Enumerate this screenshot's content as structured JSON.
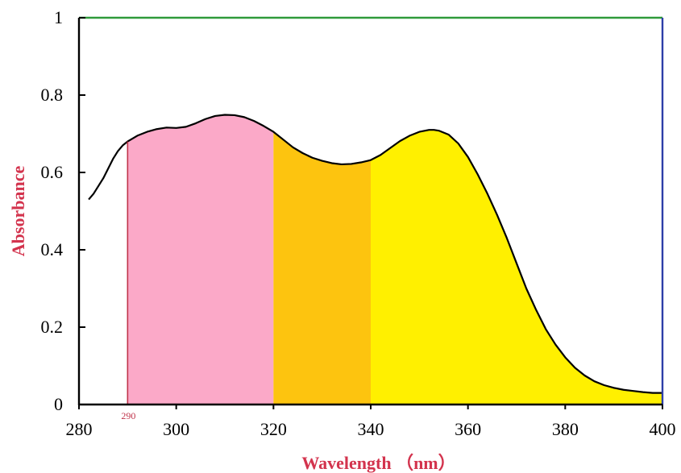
{
  "chart_data": {
    "type": "area",
    "title": "",
    "xlabel": "Wavelength （nm）",
    "ylabel": "Absorbance",
    "xlim": [
      280,
      400
    ],
    "ylim": [
      0,
      1
    ],
    "x_ticks": [
      280,
      300,
      320,
      340,
      360,
      380,
      400
    ],
    "y_ticks": [
      0,
      0.2,
      0.4,
      0.6,
      0.8,
      1
    ],
    "y_tick_labels": [
      "0",
      "0.2",
      "0.4",
      "0.6",
      "0.8",
      "1"
    ],
    "grid": false,
    "legend": "none",
    "series": [
      {
        "x": [
          282,
          283,
          284,
          285,
          286,
          287,
          288,
          289,
          290,
          292,
          294,
          296,
          298,
          300,
          302,
          304,
          306,
          308,
          310,
          312,
          314,
          316,
          318,
          320,
          322,
          324,
          326,
          328,
          330,
          332,
          334,
          336,
          338,
          340,
          342,
          344,
          346,
          348,
          350,
          352,
          353,
          354,
          356,
          358,
          360,
          362,
          364,
          366,
          368,
          370,
          372,
          374,
          376,
          378,
          380,
          382,
          384,
          386,
          388,
          390,
          392,
          394,
          396,
          398,
          400
        ],
        "y": [
          0.53,
          0.545,
          0.565,
          0.585,
          0.61,
          0.635,
          0.655,
          0.67,
          0.68,
          0.695,
          0.705,
          0.712,
          0.716,
          0.715,
          0.718,
          0.727,
          0.738,
          0.746,
          0.749,
          0.748,
          0.743,
          0.733,
          0.72,
          0.705,
          0.685,
          0.665,
          0.65,
          0.638,
          0.63,
          0.624,
          0.621,
          0.622,
          0.626,
          0.632,
          0.645,
          0.663,
          0.681,
          0.695,
          0.705,
          0.71,
          0.71,
          0.708,
          0.698,
          0.675,
          0.64,
          0.595,
          0.545,
          0.49,
          0.43,
          0.365,
          0.3,
          0.245,
          0.195,
          0.155,
          0.122,
          0.095,
          0.075,
          0.06,
          0.05,
          0.043,
          0.038,
          0.035,
          0.032,
          0.03,
          0.03
        ]
      }
    ],
    "bands": [
      {
        "from": 290,
        "to": 320,
        "color": "#fba9c8"
      },
      {
        "from": 320,
        "to": 340,
        "color": "#fdc40f"
      },
      {
        "from": 340,
        "to": 400,
        "color": "#fff000"
      }
    ],
    "annotations": [
      {
        "x": 290,
        "label": "290",
        "color": "#c0334a"
      }
    ],
    "colors": {
      "top_border": "#2f9a3a",
      "right_border": "#2d3fa8",
      "axis_title": "#d3334d",
      "curve": "#000000",
      "axis": "#000000"
    }
  }
}
